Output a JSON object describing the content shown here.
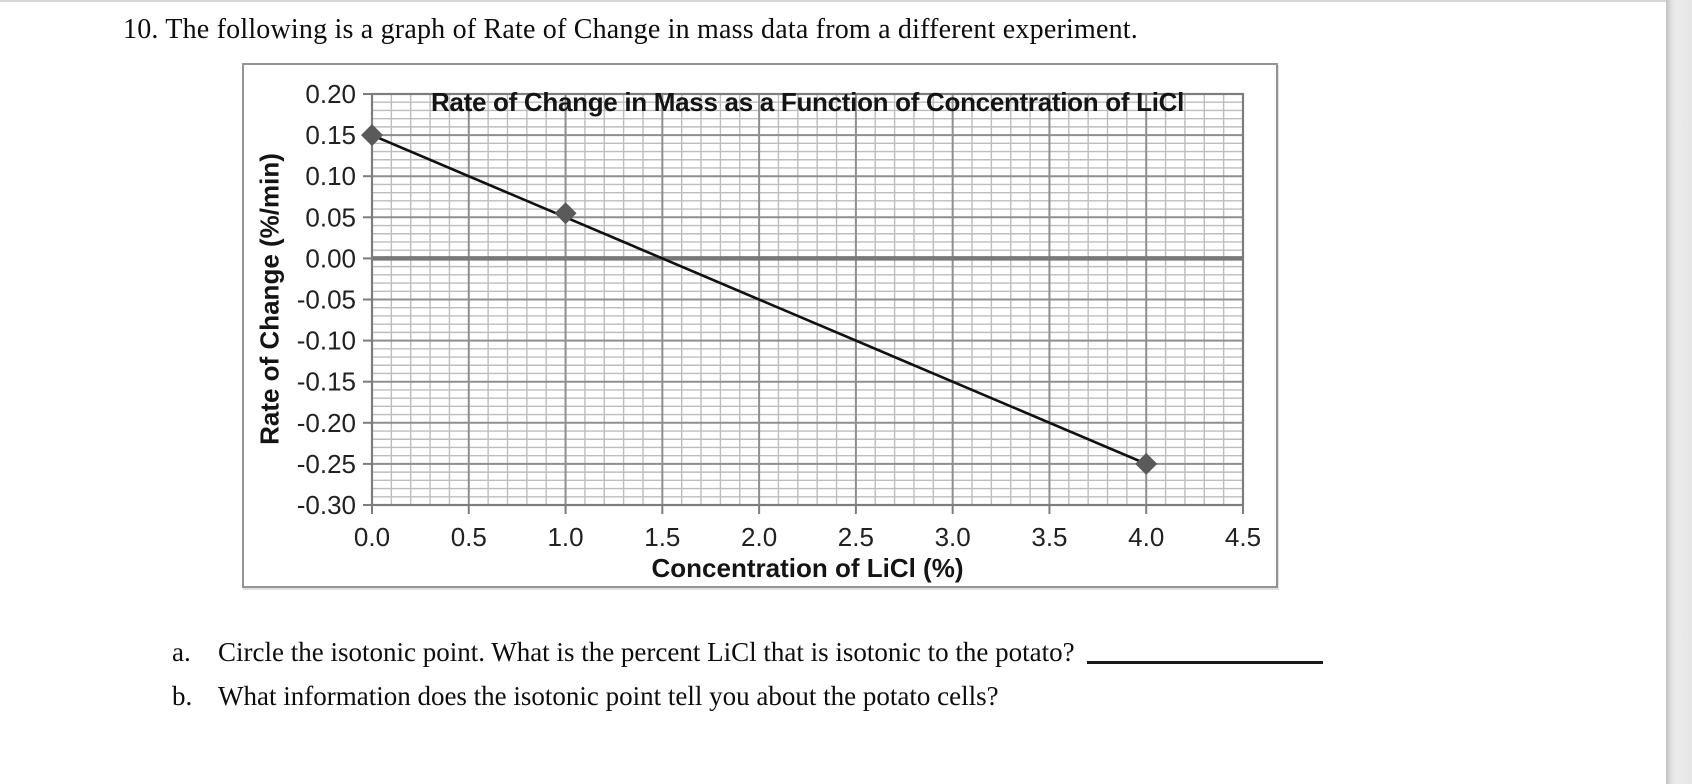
{
  "page": {
    "heading": "10. The following is a graph of Rate of Change in mass data from a different experiment.",
    "questions": [
      {
        "label": "a.",
        "text": "Circle the isotonic point. What is the percent LiCl that is isotonic to the potato?",
        "has_blank": true
      },
      {
        "label": "b.",
        "text": "What information does the isotonic point tell you about the potato cells?",
        "has_blank": false
      }
    ]
  },
  "chart_data": {
    "type": "scatter",
    "title": "Rate of Change in Mass as a Function of Concentration of LiCl",
    "xlabel": "Concentration of LiCl (%)",
    "ylabel": "Rate of Change (%/min)",
    "xlim": [
      0,
      4.5
    ],
    "ylim": [
      -0.3,
      0.2
    ],
    "x_major_step": 0.5,
    "x_minor_step": 0.1,
    "y_major_step": 0.05,
    "y_minor_step": 0.01,
    "x_ticks": [
      "0.0",
      "0.5",
      "1.0",
      "1.5",
      "2.0",
      "2.5",
      "3.0",
      "3.5",
      "4.0",
      "4.5"
    ],
    "y_ticks": [
      "0.20",
      "0.15",
      "0.10",
      "0.05",
      "0.00",
      "-0.05",
      "-0.10",
      "-0.15",
      "-0.20",
      "-0.25",
      "-0.30"
    ],
    "points": [
      {
        "x": 0.0,
        "y": 0.15
      },
      {
        "x": 1.0,
        "y": 0.055
      },
      {
        "x": 4.0,
        "y": -0.25
      }
    ],
    "trendline": {
      "x1": 0.0,
      "y1": 0.15,
      "x2": 4.0,
      "y2": -0.25
    },
    "marker": "diamond",
    "grid": "major-and-minor",
    "legend": "none",
    "zero_line_emphasized": true,
    "colors": {
      "minor_grid": "#bdbdbd",
      "major_grid": "#8f8f8f",
      "zero_line": "#787878",
      "axis": "#7d7d7d",
      "chart_border": "#949494",
      "trendline": "#111111",
      "marker": "#5a5a5a",
      "tick_label": "#212121"
    }
  }
}
